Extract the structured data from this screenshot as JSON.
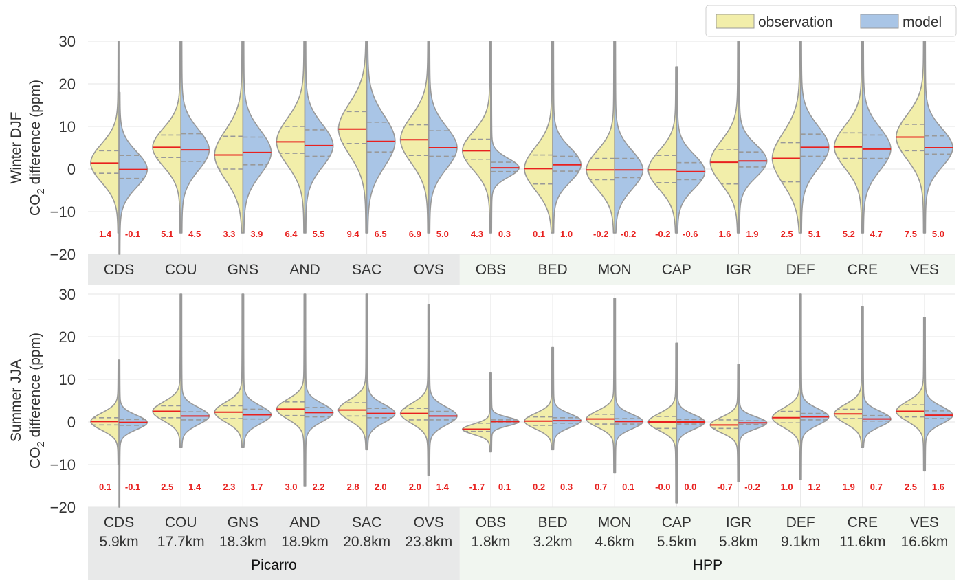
{
  "legend": [
    {
      "label": "observation",
      "color": "#f2eeaa"
    },
    {
      "label": "model",
      "color": "#a9c5e6"
    }
  ],
  "colors": {
    "observation": "#f2eeaa",
    "model": "#a9c5e6",
    "outline": "#999999",
    "median": "#e8211f",
    "quartile": "#999999",
    "value_label": "#e8211f",
    "grid": "#e6e6e6",
    "band_picarro": "#e8e9e9",
    "band_hpp": "#f1f6f0"
  },
  "groups": [
    {
      "label": "Picarro",
      "first": 0,
      "last": 5
    },
    {
      "label": "HPP",
      "first": 6,
      "last": 13
    }
  ],
  "chart_data": [
    {
      "type": "violin",
      "panel": "winter",
      "ylabel_line1": "Winter DJF",
      "ylabel_line2_prefix": "CO",
      "ylabel_line2_sub": "2",
      "ylabel_line2_suffix": " difference (ppm)",
      "ylim": [
        -20,
        30
      ],
      "yticks": [
        -20,
        -10,
        0,
        10,
        20,
        30
      ],
      "ytick_labels": [
        "−20",
        "−10",
        "0",
        "10",
        "20",
        "30"
      ],
      "grid": true,
      "categories": [
        "CDS",
        "COU",
        "GNS",
        "AND",
        "SAC",
        "OVS",
        "OBS",
        "BED",
        "MON",
        "CAP",
        "IGR",
        "DEF",
        "CRE",
        "VES"
      ],
      "sites": [
        {
          "obs": {
            "median": 1.4,
            "q1": -1.0,
            "q3": 4.3,
            "min": -15,
            "max": 30,
            "s": 4.5
          },
          "model": {
            "median": -0.1,
            "q1": -2.2,
            "q3": 3.2,
            "min": -20,
            "max": 18,
            "s": 4.2
          },
          "obs_label": "1.4",
          "model_label": "-0.1"
        },
        {
          "obs": {
            "median": 5.1,
            "q1": 2.7,
            "q3": 8.0,
            "min": -15,
            "max": 30,
            "s": 4.5
          },
          "model": {
            "median": 4.5,
            "q1": 1.8,
            "q3": 8.3,
            "min": -15,
            "max": 30,
            "s": 4.8
          },
          "obs_label": "5.1",
          "model_label": "4.5"
        },
        {
          "obs": {
            "median": 3.3,
            "q1": 0.0,
            "q3": 7.7,
            "min": -15,
            "max": 30,
            "s": 5.8
          },
          "model": {
            "median": 3.9,
            "q1": 1.0,
            "q3": 7.5,
            "min": -15,
            "max": 30,
            "s": 5.2
          },
          "obs_label": "3.3",
          "model_label": "3.9"
        },
        {
          "obs": {
            "median": 6.4,
            "q1": 3.7,
            "q3": 10.0,
            "min": -15,
            "max": 30,
            "s": 5.5
          },
          "model": {
            "median": 5.5,
            "q1": 3.0,
            "q3": 9.2,
            "min": -15,
            "max": 30,
            "s": 5.0
          },
          "obs_label": "6.4",
          "model_label": "5.5"
        },
        {
          "obs": {
            "median": 9.4,
            "q1": 6.0,
            "q3": 13.5,
            "min": -15,
            "max": 30,
            "s": 6.0
          },
          "model": {
            "median": 6.5,
            "q1": 4.0,
            "q3": 11.0,
            "min": -15,
            "max": 30,
            "s": 6.0
          },
          "obs_label": "9.4",
          "model_label": "6.5"
        },
        {
          "obs": {
            "median": 6.9,
            "q1": 3.2,
            "q3": 10.4,
            "min": -15,
            "max": 30,
            "s": 5.5
          },
          "model": {
            "median": 5.0,
            "q1": 3.0,
            "q3": 9.0,
            "min": -15,
            "max": 30,
            "s": 5.0
          },
          "obs_label": "6.9",
          "model_label": "5.0"
        },
        {
          "obs": {
            "median": 4.3,
            "q1": 2.3,
            "q3": 7.0,
            "min": -15,
            "max": 30,
            "s": 4.5
          },
          "model": {
            "median": 0.3,
            "q1": -0.6,
            "q3": 1.6,
            "min": -15,
            "max": 30,
            "s": 2.2
          },
          "obs_label": "4.3",
          "model_label": "0.3"
        },
        {
          "obs": {
            "median": 0.1,
            "q1": -3.5,
            "q3": 3.3,
            "min": -15,
            "max": 30,
            "s": 5.0
          },
          "model": {
            "median": 1.0,
            "q1": -0.5,
            "q3": 3.0,
            "min": -15,
            "max": 30,
            "s": 4.0
          },
          "obs_label": "0.1",
          "model_label": "1.0"
        },
        {
          "obs": {
            "median": -0.2,
            "q1": -2.5,
            "q3": 2.5,
            "min": -15,
            "max": 30,
            "s": 4.5
          },
          "model": {
            "median": -0.2,
            "q1": -2.0,
            "q3": 2.5,
            "min": -15,
            "max": 30,
            "s": 4.5
          },
          "obs_label": "-0.2",
          "model_label": "-0.2"
        },
        {
          "obs": {
            "median": -0.2,
            "q1": -3.2,
            "q3": 3.2,
            "min": -15,
            "max": 24,
            "s": 4.5
          },
          "model": {
            "median": -0.6,
            "q1": -2.5,
            "q3": 1.5,
            "min": -15,
            "max": 24,
            "s": 4.0
          },
          "obs_label": "-0.2",
          "model_label": "-0.6"
        },
        {
          "obs": {
            "median": 1.6,
            "q1": -3.5,
            "q3": 4.5,
            "min": -15,
            "max": 30,
            "s": 5.0
          },
          "model": {
            "median": 1.9,
            "q1": 0.5,
            "q3": 4.0,
            "min": -15,
            "max": 30,
            "s": 3.8
          },
          "obs_label": "1.6",
          "model_label": "1.9"
        },
        {
          "obs": {
            "median": 2.5,
            "q1": -3.0,
            "q3": 6.2,
            "min": -15,
            "max": 30,
            "s": 6.0
          },
          "model": {
            "median": 5.1,
            "q1": 3.0,
            "q3": 8.2,
            "min": -15,
            "max": 30,
            "s": 5.0
          },
          "obs_label": "2.5",
          "model_label": "5.1"
        },
        {
          "obs": {
            "median": 5.2,
            "q1": 2.5,
            "q3": 8.5,
            "min": -15,
            "max": 30,
            "s": 5.0
          },
          "model": {
            "median": 4.7,
            "q1": 2.5,
            "q3": 8.0,
            "min": -15,
            "max": 30,
            "s": 5.0
          },
          "obs_label": "5.2",
          "model_label": "4.7"
        },
        {
          "obs": {
            "median": 7.5,
            "q1": 4.3,
            "q3": 10.5,
            "min": -15,
            "max": 30,
            "s": 5.2
          },
          "model": {
            "median": 5.0,
            "q1": 3.5,
            "q3": 7.8,
            "min": -15,
            "max": 30,
            "s": 4.5
          },
          "obs_label": "7.5",
          "model_label": "5.0"
        }
      ]
    },
    {
      "type": "violin",
      "panel": "summer",
      "ylabel_line1": "Summer JJA",
      "ylabel_line2_prefix": "CO",
      "ylabel_line2_sub": "2",
      "ylabel_line2_suffix": " difference (ppm)",
      "ylim": [
        -20,
        30
      ],
      "yticks": [
        -20,
        -10,
        0,
        10,
        20,
        30
      ],
      "ytick_labels": [
        "−20",
        "−10",
        "0",
        "10",
        "20",
        "30"
      ],
      "grid": true,
      "categories": [
        "CDS",
        "COU",
        "GNS",
        "AND",
        "SAC",
        "OVS",
        "OBS",
        "BED",
        "MON",
        "CAP",
        "IGR",
        "DEF",
        "CRE",
        "VES"
      ],
      "distances": [
        "5.9km",
        "17.7km",
        "18.3km",
        "18.9km",
        "20.8km",
        "23.8km",
        "1.8km",
        "3.2km",
        "4.6km",
        "5.5km",
        "5.8km",
        "9.1km",
        "11.6km",
        "16.6km"
      ],
      "sites": [
        {
          "obs": {
            "median": 0.1,
            "q1": -0.7,
            "q3": 1.0,
            "min": -10,
            "max": 14.5,
            "s": 2.0
          },
          "model": {
            "median": -0.1,
            "q1": -0.8,
            "q3": 0.6,
            "min": -20,
            "max": 14.5,
            "s": 1.7
          },
          "obs_label": "0.1",
          "model_label": "-0.1"
        },
        {
          "obs": {
            "median": 2.5,
            "q1": 1.0,
            "q3": 3.8,
            "min": -6,
            "max": 30,
            "s": 2.2
          },
          "model": {
            "median": 1.4,
            "q1": 0.5,
            "q3": 2.4,
            "min": -6,
            "max": 30,
            "s": 2.0
          },
          "obs_label": "2.5",
          "model_label": "1.4"
        },
        {
          "obs": {
            "median": 2.3,
            "q1": 0.8,
            "q3": 3.8,
            "min": -6,
            "max": 30,
            "s": 2.3
          },
          "model": {
            "median": 1.7,
            "q1": 0.7,
            "q3": 3.0,
            "min": -6,
            "max": 30,
            "s": 2.1
          },
          "obs_label": "2.3",
          "model_label": "1.7"
        },
        {
          "obs": {
            "median": 3.0,
            "q1": 1.5,
            "q3": 4.7,
            "min": -15,
            "max": 30,
            "s": 2.3
          },
          "model": {
            "median": 2.2,
            "q1": 1.2,
            "q3": 3.4,
            "min": -15,
            "max": 30,
            "s": 2.1
          },
          "obs_label": "3.0",
          "model_label": "2.2"
        },
        {
          "obs": {
            "median": 2.8,
            "q1": 1.4,
            "q3": 4.5,
            "min": -6.5,
            "max": 30,
            "s": 2.4
          },
          "model": {
            "median": 2.0,
            "q1": 1.0,
            "q3": 3.2,
            "min": -6.5,
            "max": 30,
            "s": 2.1
          },
          "obs_label": "2.8",
          "model_label": "2.0"
        },
        {
          "obs": {
            "median": 2.0,
            "q1": 0.5,
            "q3": 3.2,
            "min": -12.5,
            "max": 27.5,
            "s": 2.3
          },
          "model": {
            "median": 1.4,
            "q1": 0.5,
            "q3": 2.5,
            "min": -12.5,
            "max": 27.5,
            "s": 2.1
          },
          "obs_label": "2.0",
          "model_label": "1.4"
        },
        {
          "obs": {
            "median": -1.7,
            "q1": -2.2,
            "q3": -0.3,
            "min": -7,
            "max": 11.5,
            "s": 1.2
          },
          "model": {
            "median": 0.1,
            "q1": -0.2,
            "q3": 0.5,
            "min": -7,
            "max": 11.5,
            "s": 1.0
          },
          "obs_label": "-1.7",
          "model_label": "0.1"
        },
        {
          "obs": {
            "median": 0.2,
            "q1": -0.8,
            "q3": 1.2,
            "min": -6.5,
            "max": 17.5,
            "s": 1.8
          },
          "model": {
            "median": 0.3,
            "q1": -0.3,
            "q3": 1.0,
            "min": -6.5,
            "max": 17.5,
            "s": 1.6
          },
          "obs_label": "0.2",
          "model_label": "0.3"
        },
        {
          "obs": {
            "median": 0.7,
            "q1": -0.5,
            "q3": 1.8,
            "min": -12,
            "max": 29,
            "s": 1.9
          },
          "model": {
            "median": 0.1,
            "q1": -0.5,
            "q3": 0.8,
            "min": -12,
            "max": 29,
            "s": 1.7
          },
          "obs_label": "0.7",
          "model_label": "0.1"
        },
        {
          "obs": {
            "median": 0.0,
            "q1": -1.5,
            "q3": 1.3,
            "min": -19,
            "max": 18.5,
            "s": 2.0
          },
          "model": {
            "median": 0.0,
            "q1": -0.5,
            "q3": 0.6,
            "min": -19,
            "max": 18.5,
            "s": 1.7
          },
          "obs_label": "-0.0",
          "model_label": "0.0"
        },
        {
          "obs": {
            "median": -0.7,
            "q1": -1.5,
            "q3": 0.5,
            "min": -14,
            "max": 13.5,
            "s": 1.8
          },
          "model": {
            "median": -0.2,
            "q1": -0.6,
            "q3": 0.3,
            "min": -14,
            "max": 13.5,
            "s": 1.4
          },
          "obs_label": "-0.7",
          "model_label": "-0.2"
        },
        {
          "obs": {
            "median": 1.0,
            "q1": -0.2,
            "q3": 2.5,
            "min": -13.5,
            "max": 30,
            "s": 2.2
          },
          "model": {
            "median": 1.2,
            "q1": 0.5,
            "q3": 2.0,
            "min": -13.5,
            "max": 30,
            "s": 1.9
          },
          "obs_label": "1.0",
          "model_label": "1.2"
        },
        {
          "obs": {
            "median": 1.9,
            "q1": 0.8,
            "q3": 3.0,
            "min": -6,
            "max": 27,
            "s": 2.2
          },
          "model": {
            "median": 0.7,
            "q1": 0.2,
            "q3": 1.5,
            "min": -6,
            "max": 27,
            "s": 1.8
          },
          "obs_label": "1.9",
          "model_label": "0.7"
        },
        {
          "obs": {
            "median": 2.5,
            "q1": 1.2,
            "q3": 4.0,
            "min": -11.5,
            "max": 24.5,
            "s": 2.3
          },
          "model": {
            "median": 1.6,
            "q1": 0.8,
            "q3": 2.6,
            "min": -11.5,
            "max": 24.5,
            "s": 2.0
          },
          "obs_label": "2.5",
          "model_label": "1.6"
        }
      ]
    }
  ]
}
